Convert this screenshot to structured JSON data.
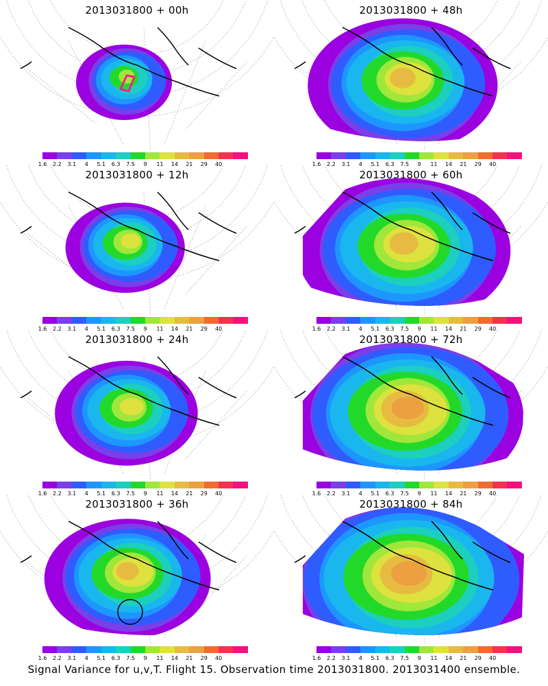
{
  "colorbar": {
    "labels": [
      "1.6",
      "2.2",
      "3.1",
      "4",
      "5.1",
      "6.3",
      "7.5",
      "9",
      "11",
      "14",
      "21",
      "29",
      "40"
    ],
    "colors": [
      "#9b00e0",
      "#7a3fe8",
      "#2f5cff",
      "#1e96ff",
      "#19b7ee",
      "#1ccfbf",
      "#22d92a",
      "#9fe73a",
      "#dde23e",
      "#e7bb41",
      "#eca040",
      "#f06c2e",
      "#f3324f",
      "#f4107d"
    ]
  },
  "chart_data": [
    {
      "type": "heatmap",
      "title": "2013031800  + 00h",
      "lead_hour": 0,
      "legend_labels": [
        "1.6",
        "2.2",
        "3.1",
        "4",
        "5.1",
        "6.3",
        "7.5",
        "9",
        "11",
        "14",
        "21",
        "29",
        "40"
      ],
      "peak_level": "9"
    },
    {
      "type": "heatmap",
      "title": "2013031800  + 48h",
      "lead_hour": 48,
      "legend_labels": [
        "1.6",
        "2.2",
        "3.1",
        "4",
        "5.1",
        "6.3",
        "7.5",
        "9",
        "11",
        "14",
        "21",
        "29",
        "40"
      ],
      "peak_level": "14"
    },
    {
      "type": "heatmap",
      "title": "2013031800  + 12h",
      "lead_hour": 12,
      "legend_labels": [
        "1.6",
        "2.2",
        "3.1",
        "4",
        "5.1",
        "6.3",
        "7.5",
        "9",
        "11",
        "14",
        "21",
        "29",
        "40"
      ],
      "peak_level": "11"
    },
    {
      "type": "heatmap",
      "title": "2013031800  + 60h",
      "lead_hour": 60,
      "legend_labels": [
        "1.6",
        "2.2",
        "3.1",
        "4",
        "5.1",
        "6.3",
        "7.5",
        "9",
        "11",
        "14",
        "21",
        "29",
        "40"
      ],
      "peak_level": "14"
    },
    {
      "type": "heatmap",
      "title": "2013031800  + 24h",
      "lead_hour": 24,
      "legend_labels": [
        "1.6",
        "2.2",
        "3.1",
        "4",
        "5.1",
        "6.3",
        "7.5",
        "9",
        "11",
        "14",
        "21",
        "29",
        "40"
      ],
      "peak_level": "11"
    },
    {
      "type": "heatmap",
      "title": "2013031800  + 72h",
      "lead_hour": 72,
      "legend_labels": [
        "1.6",
        "2.2",
        "3.1",
        "4",
        "5.1",
        "6.3",
        "7.5",
        "9",
        "11",
        "14",
        "21",
        "29",
        "40"
      ],
      "peak_level": "21"
    },
    {
      "type": "heatmap",
      "title": "2013031800  + 36h",
      "lead_hour": 36,
      "legend_labels": [
        "1.6",
        "2.2",
        "3.1",
        "4",
        "5.1",
        "6.3",
        "7.5",
        "9",
        "11",
        "14",
        "21",
        "29",
        "40"
      ],
      "peak_level": "14"
    },
    {
      "type": "heatmap",
      "title": "2013031800  + 84h",
      "lead_hour": 84,
      "legend_labels": [
        "1.6",
        "2.2",
        "3.1",
        "4",
        "5.1",
        "6.3",
        "7.5",
        "9",
        "11",
        "14",
        "21",
        "29",
        "40"
      ],
      "peak_level": "21"
    }
  ],
  "footer": "Signal Variance for u,v,T. Flight 15. Observation time 2013031800. 2013031400 ensemble."
}
